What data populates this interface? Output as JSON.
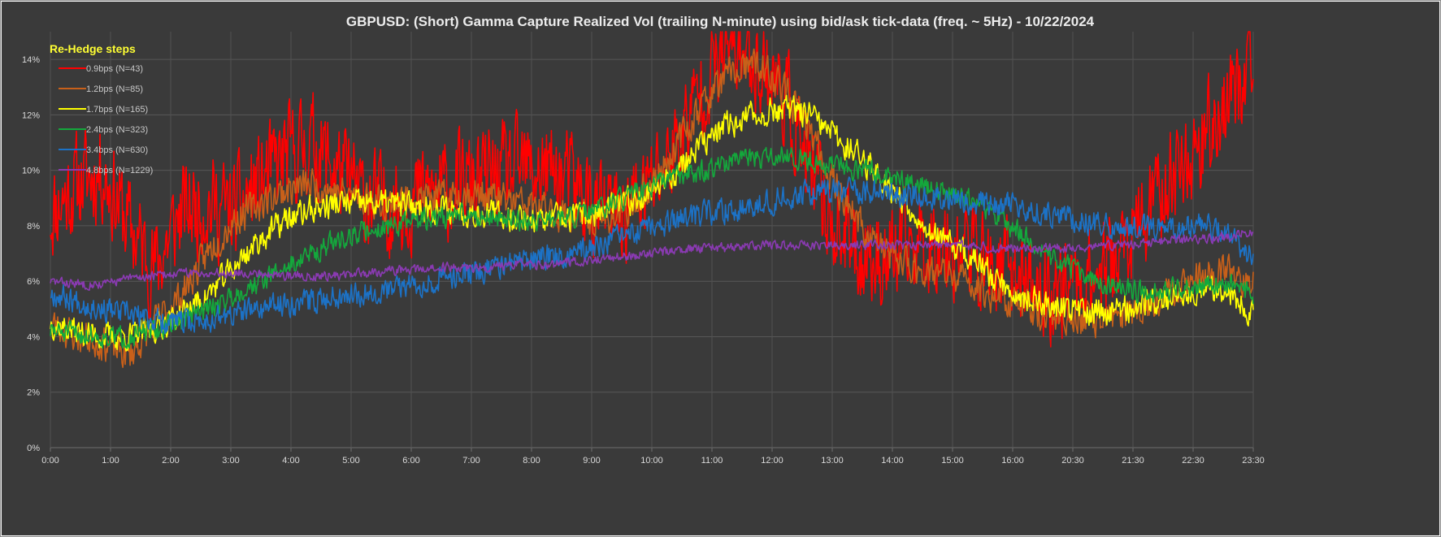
{
  "chart_data": {
    "type": "line",
    "title": "GBPUSD: (Short) Gamma Capture Realized Vol (trailing N-minute) using bid/ask tick-data (freq. ~ 5Hz) - 10/22/2024",
    "xlabel": "",
    "ylabel": "",
    "y_ticks": [
      "0%",
      "2%",
      "4%",
      "6%",
      "8%",
      "10%",
      "12%",
      "14%"
    ],
    "ylim": [
      0,
      15
    ],
    "x_ticks": [
      "0:00",
      "1:00",
      "2:00",
      "3:00",
      "4:00",
      "5:00",
      "6:00",
      "7:00",
      "8:00",
      "9:00",
      "10:00",
      "11:00",
      "12:00",
      "13:00",
      "14:00",
      "15:00",
      "16:00",
      "20:30",
      "21:30",
      "22:30",
      "23:30"
    ],
    "grid": true,
    "legend": {
      "title": "Re-Hedge steps",
      "position": "top-left"
    },
    "series": [
      {
        "name": "0.9bps  (N=43)",
        "color": "#ff0000",
        "noise": 1.6,
        "seed": 11,
        "values": [
          8.5,
          9.5,
          10,
          8,
          6.5,
          8.5,
          8.8,
          8.5,
          9.5,
          10.5,
          11,
          10,
          9,
          8.7,
          9,
          9.3,
          9.5,
          9.8,
          10,
          10,
          9.5,
          8.5,
          8.5,
          9.5,
          11,
          13.2,
          14.5,
          14,
          13,
          10,
          8,
          7,
          6.8,
          7.3,
          7.5,
          7.2,
          6.5,
          6.3,
          5.5,
          6,
          6.3,
          7,
          8.5,
          10,
          11,
          12.5,
          14
        ]
      },
      {
        "name": "1.2bps  (N=85)",
        "color": "#c8601a",
        "noise": 0.55,
        "seed": 23,
        "values": [
          4.5,
          4,
          3.8,
          3.3,
          4.5,
          5.5,
          7,
          8.2,
          8.8,
          9.3,
          9.5,
          9.2,
          9,
          8.8,
          9,
          9,
          9.2,
          9,
          8.8,
          8.5,
          8.3,
          8.2,
          8.5,
          9.5,
          11,
          12.5,
          13.5,
          13.8,
          13,
          11.5,
          9.5,
          8,
          7,
          6.5,
          6.3,
          6,
          5.5,
          5.2,
          4.8,
          4.7,
          4.6,
          4.8,
          5.2,
          5.8,
          6.2,
          6.3,
          6
        ]
      },
      {
        "name": "1.7bps  (N=165)",
        "color": "#ffff00",
        "noise": 0.45,
        "seed": 37,
        "values": [
          4.5,
          4.2,
          4,
          4,
          4.3,
          4.8,
          5.5,
          6.5,
          7.5,
          8.2,
          8.6,
          8.8,
          8.8,
          8.8,
          8.7,
          8.6,
          8.5,
          8.4,
          8.3,
          8.2,
          8.3,
          8.5,
          8.8,
          9.3,
          10,
          11,
          11.7,
          12,
          12.2,
          12,
          11.2,
          10.5,
          9.5,
          8.5,
          7.5,
          7,
          6.2,
          5.5,
          5.2,
          5,
          4.9,
          5,
          5.2,
          5.5,
          5.8,
          5.7,
          4.8
        ]
      },
      {
        "name": "2.4bps  (N=323)",
        "color": "#14a83c",
        "noise": 0.35,
        "seed": 51,
        "values": [
          4.2,
          4.1,
          4,
          4,
          4.2,
          4.6,
          5,
          5.5,
          6,
          6.5,
          7,
          7.5,
          7.8,
          8,
          8.2,
          8.3,
          8.4,
          8.3,
          8.2,
          8.2,
          8.3,
          8.6,
          9,
          9.4,
          9.8,
          10,
          10.3,
          10.4,
          10.5,
          10.4,
          10.2,
          10,
          9.8,
          9.5,
          9.3,
          9,
          8.5,
          7.8,
          7,
          6.5,
          6,
          5.7,
          5.6,
          5.7,
          5.8,
          5.9,
          5.5
        ]
      },
      {
        "name": "3.4bps  (N=630)",
        "color": "#1c72c6",
        "noise": 0.4,
        "seed": 67,
        "values": [
          5.6,
          5.3,
          5,
          4.8,
          4.6,
          4.5,
          4.6,
          4.8,
          5,
          5.2,
          5.3,
          5.5,
          5.6,
          5.7,
          5.9,
          6.1,
          6.3,
          6.5,
          6.7,
          6.9,
          7,
          7.3,
          7.6,
          7.9,
          8.2,
          8.4,
          8.6,
          8.8,
          9,
          9.2,
          9.3,
          9.3,
          9.2,
          9.1,
          9,
          8.9,
          8.8,
          8.7,
          8.5,
          8.3,
          8.1,
          8,
          7.9,
          7.9,
          8,
          7.8,
          6.8
        ]
      },
      {
        "name": "4.8bps  (N=1229)",
        "color": "#8a3ab2",
        "noise": 0.15,
        "seed": 83,
        "values": [
          6,
          5.9,
          5.9,
          6.1,
          6.2,
          6.3,
          6.3,
          6.3,
          6.3,
          6.2,
          6.2,
          6.2,
          6.3,
          6.4,
          6.4,
          6.5,
          6.5,
          6.5,
          6.6,
          6.6,
          6.7,
          6.8,
          6.9,
          7,
          7.1,
          7.2,
          7.2,
          7.3,
          7.3,
          7.3,
          7.3,
          7.3,
          7.3,
          7.3,
          7.3,
          7.3,
          7.2,
          7.2,
          7.2,
          7.2,
          7.3,
          7.3,
          7.4,
          7.5,
          7.5,
          7.6,
          7.8
        ]
      }
    ]
  }
}
